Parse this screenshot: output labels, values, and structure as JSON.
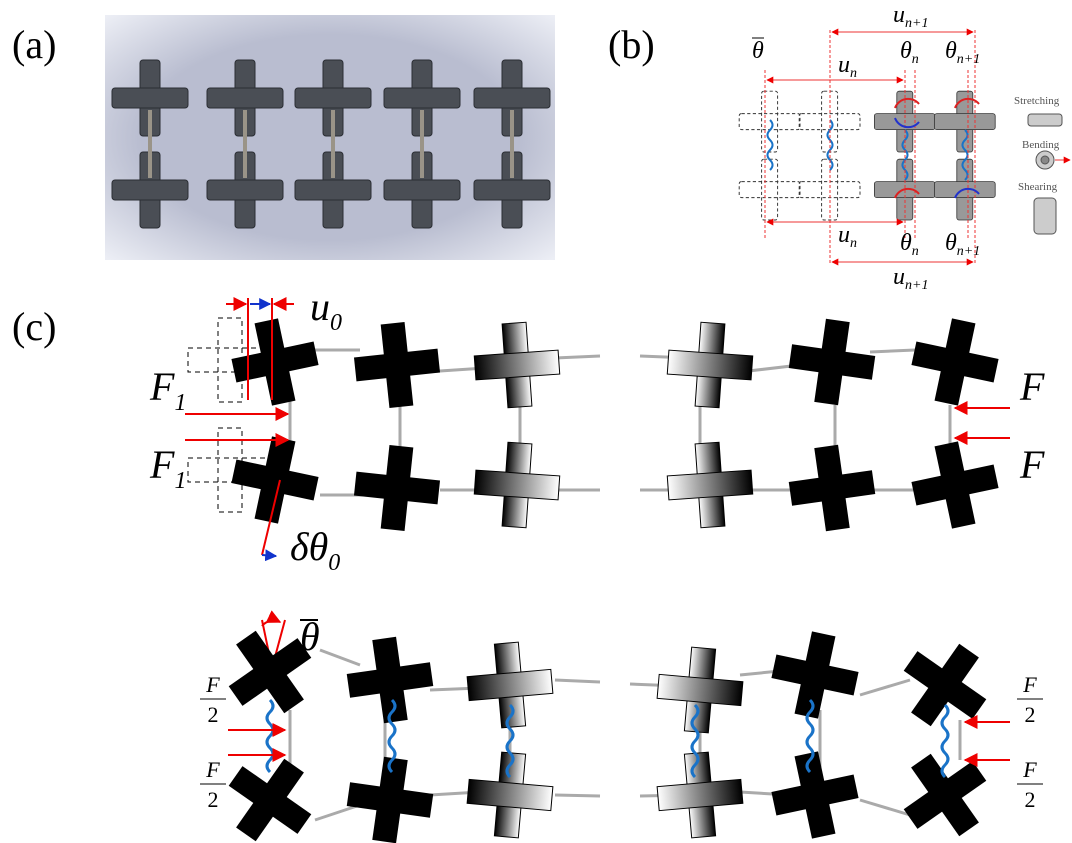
{
  "panels": {
    "a": {
      "label": "(a)"
    },
    "b": {
      "label": "(b)",
      "symbols": [
        {
          "text": "θ"
        },
        {
          "text": "u",
          "sub": "n+1"
        },
        {
          "text": "u",
          "sub": "n"
        },
        {
          "text": "θ",
          "sub": "n"
        },
        {
          "text": "θ",
          "sub": "n+1"
        },
        {
          "text": "u",
          "sub": "n"
        },
        {
          "text": "θ",
          "sub": "n"
        },
        {
          "text": "θ",
          "sub": "n+1"
        },
        {
          "text": "u",
          "sub": "n+1"
        }
      ],
      "legend": [
        "Stretching",
        "Bending",
        "Shearing"
      ]
    },
    "c": {
      "label": "(c)",
      "symbols": [
        {
          "text": "u",
          "sub": "0"
        },
        {
          "text": "F",
          "sub": "1"
        },
        {
          "text": "F",
          "sub": "1"
        },
        {
          "text": "F"
        },
        {
          "text": "F"
        },
        {
          "text": "δθ",
          "sub": "0"
        },
        {
          "text": "θ"
        }
      ],
      "fractions": [
        {
          "num": "F",
          "den": "2"
        },
        {
          "num": "F",
          "den": "2"
        },
        {
          "num": "F",
          "den": "2"
        },
        {
          "num": "F",
          "den": "2"
        }
      ]
    }
  }
}
